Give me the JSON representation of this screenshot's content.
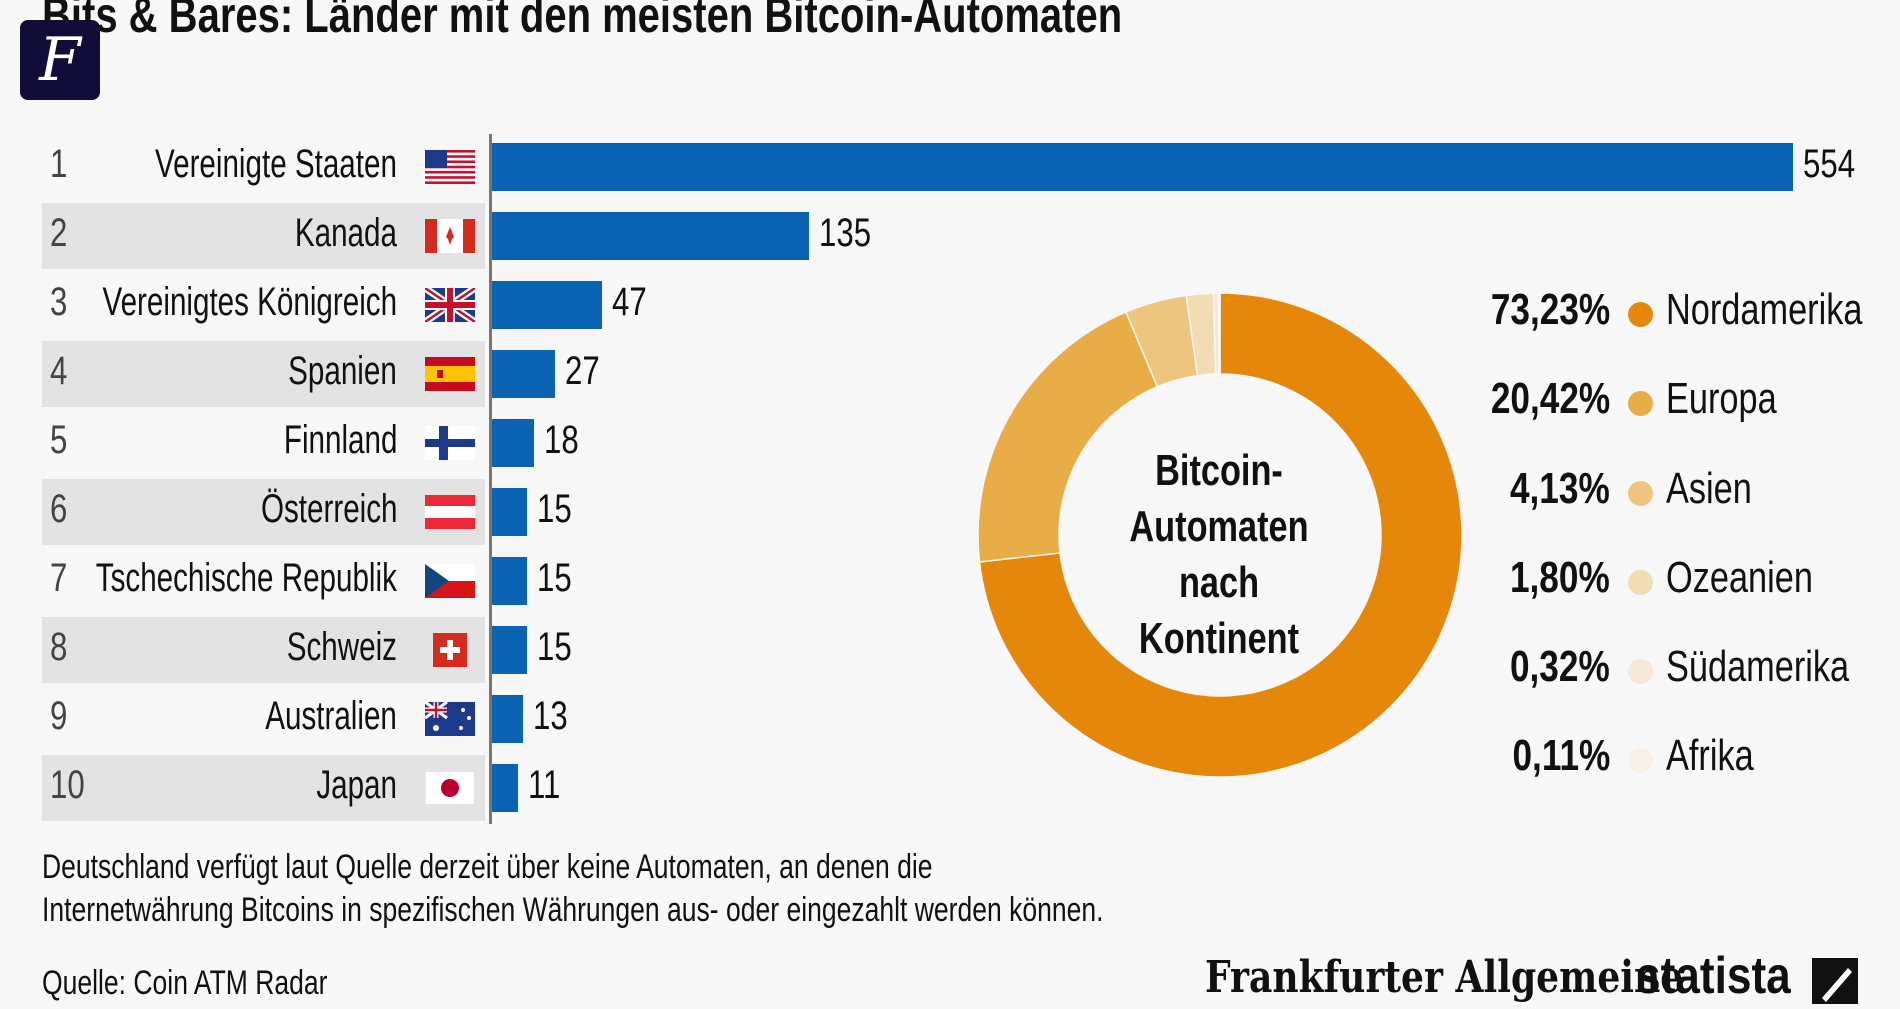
{
  "title": "Bits & Bares: Länder mit den meisten Bitcoin-Automaten",
  "logo_letter": "F",
  "chart_data": [
    {
      "type": "bar",
      "orientation": "horizontal",
      "categories": [
        "Vereinigte Staaten",
        "Kanada",
        "Vereinigtes Königreich",
        "Spanien",
        "Finnland",
        "Österreich",
        "Tschechische Republik",
        "Schweiz",
        "Australien",
        "Japan"
      ],
      "ranks": [
        "1",
        "2",
        "3",
        "4",
        "5",
        "6",
        "7",
        "8",
        "9",
        "10"
      ],
      "flags": [
        "us-flag-icon",
        "canada-flag-icon",
        "uk-flag-icon",
        "spain-flag-icon",
        "finland-flag-icon",
        "austria-flag-icon",
        "czech-flag-icon",
        "switzerland-flag-icon",
        "australia-flag-icon",
        "japan-flag-icon"
      ],
      "values": [
        554,
        135,
        47,
        27,
        18,
        15,
        15,
        15,
        13,
        11
      ],
      "color": "#0a63b3"
    },
    {
      "type": "pie",
      "donut": true,
      "title": "Bitcoin-Automaten nach Kontinent",
      "title_lines": [
        "Bitcoin-",
        "Automaten nach",
        "Kontinent"
      ],
      "labels": [
        "Nordamerika",
        "Europa",
        "Asien",
        "Ozeanien",
        "Südamerika",
        "Afrika"
      ],
      "values": [
        73.23,
        20.42,
        4.13,
        1.8,
        0.32,
        0.11
      ],
      "value_labels": [
        "73,23%",
        "20,42%",
        "4,13%",
        "1,80%",
        "0,32%",
        "0,11%"
      ],
      "colors": [
        "#e5870a",
        "#e9ad48",
        "#eec57e",
        "#f2dcb3",
        "#f5e8d4",
        "#f6efe4"
      ],
      "legend": "right"
    }
  ],
  "footnote_lines": [
    "Deutschland verfügt laut Quelle derzeit über keine Automaten, an denen die",
    "Internetwährung Bitcoins in spezifischen Währungen aus- oder eingezahlt werden können."
  ],
  "source": "Quelle: Coin ATM Radar",
  "brand_faz": "Frankfurter Allgemeine",
  "brand_statista": "statista"
}
